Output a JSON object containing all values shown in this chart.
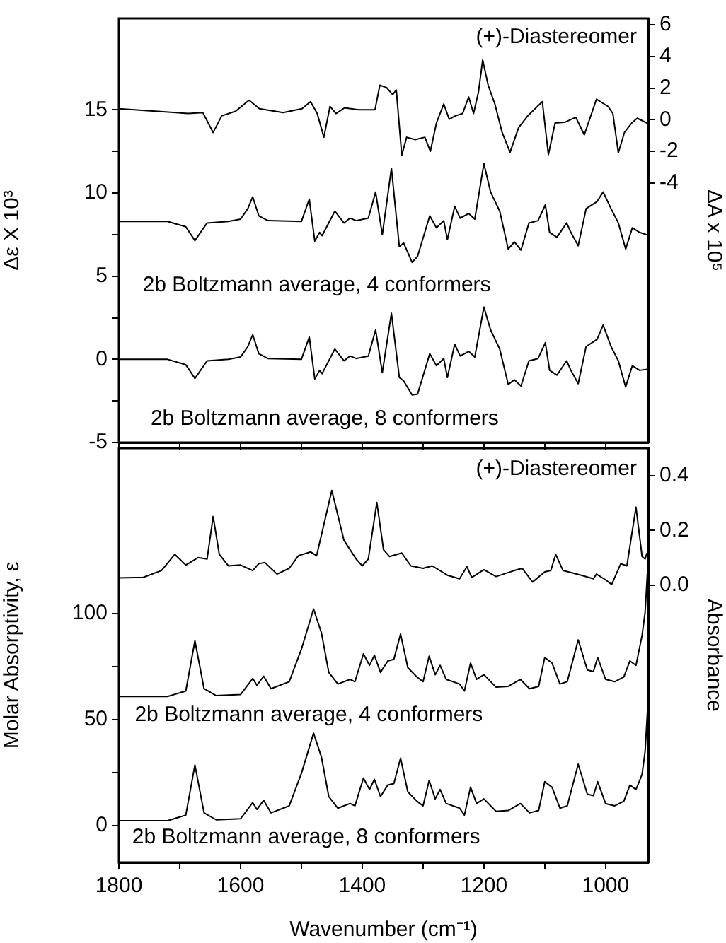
{
  "chart_data": [
    {
      "type": "line",
      "ylabel": "Δε X 10³",
      "y2label": "ΔA x 10⁵",
      "xlim": [
        1800,
        930
      ],
      "xticks": [
        {
          "value": 1800,
          "label": null
        },
        {
          "value": 1700,
          "label": null
        },
        {
          "value": 1600,
          "label": null
        },
        {
          "value": 1500,
          "label": null
        },
        {
          "value": 1400,
          "label": null
        },
        {
          "value": 1300,
          "label": null
        },
        {
          "value": 1200,
          "label": null
        },
        {
          "value": 1100,
          "label": null
        },
        {
          "value": 1000,
          "label": null
        }
      ],
      "ylim": [
        -5,
        20.5
      ],
      "yticks": [
        -5,
        {
          "value": -2.5,
          "label": null
        },
        0,
        {
          "value": 2.5,
          "label": null
        },
        5,
        {
          "value": 7.5,
          "label": null
        },
        10,
        {
          "value": 12.5,
          "label": null
        },
        15
      ],
      "y2lim": [
        -20.4,
        6.4
      ],
      "y2ticks": [
        -4,
        -2,
        0,
        2,
        4,
        6
      ],
      "tick_labels": "y",
      "annotations": [
        "(+)-Diastereomer",
        "2b Boltzmann average, 4 conformers",
        "2b Boltzmann average, 8 conformers"
      ],
      "series": [
        {
          "color": "#000000",
          "axis": "y2",
          "x": [
            1800,
            1686,
            1662,
            1645,
            1631,
            1608,
            1586,
            1569,
            1530,
            1499,
            1485,
            1474,
            1463,
            1453,
            1443,
            1429,
            1406,
            1379,
            1371,
            1360,
            1350,
            1344,
            1335,
            1327,
            1313,
            1297,
            1288,
            1278,
            1266,
            1257,
            1247,
            1235,
            1225,
            1217,
            1209,
            1202,
            1193,
            1182,
            1170,
            1157,
            1143,
            1128,
            1104,
            1094,
            1083,
            1066,
            1049,
            1035,
            1015,
            996,
            988,
            979,
            969,
            957,
            948,
            932
          ],
          "values": [
            0.69,
            0.39,
            0.45,
            -0.81,
            0.24,
            0.54,
            1.23,
            0.69,
            0.45,
            0.69,
            1.14,
            0.39,
            -1.11,
            0.84,
            0.39,
            0.75,
            0.63,
            0.63,
            2.18,
            2.03,
            1.58,
            1.88,
            -2.24,
            -1.11,
            -1.26,
            -1.11,
            -2.0,
            -0.21,
            0.99,
            0.03,
            0.24,
            0.39,
            1.43,
            0.39,
            1.73,
            3.77,
            2.18,
            0.99,
            -0.81,
            -2.06,
            -0.51,
            0.24,
            1.14,
            -2.21,
            -0.21,
            -0.15,
            0.15,
            -0.96,
            1.29,
            0.84,
            0.39,
            -2.09,
            -0.81,
            -0.21,
            0.09,
            -0.21
          ]
        },
        {
          "color": "#000000",
          "x": [
            1800,
            1720,
            1690,
            1675,
            1655,
            1620,
            1600,
            1588,
            1580,
            1570,
            1555,
            1500,
            1487,
            1478,
            1470,
            1466,
            1445,
            1430,
            1420,
            1410,
            1390,
            1378,
            1367,
            1352,
            1339,
            1332,
            1318,
            1309,
            1289,
            1278,
            1266,
            1260,
            1248,
            1239,
            1225,
            1215,
            1200,
            1189,
            1174,
            1160,
            1150,
            1139,
            1126,
            1111,
            1099,
            1092,
            1080,
            1064,
            1057,
            1045,
            1032,
            1014,
            1004,
            991,
            979,
            967,
            956,
            944,
            932
          ],
          "values": [
            8.29,
            8.29,
            7.97,
            7.14,
            8.2,
            8.29,
            8.43,
            9.06,
            9.77,
            8.63,
            8.34,
            8.29,
            9.63,
            7.11,
            7.63,
            7.43,
            8.91,
            8.2,
            8.49,
            8.34,
            8.49,
            10.06,
            7.49,
            11.49,
            6.77,
            7.0,
            5.83,
            6.2,
            8.63,
            7.91,
            8.34,
            7.2,
            9.2,
            8.49,
            8.77,
            8.43,
            11.77,
            10.06,
            8.91,
            6.63,
            7.06,
            6.57,
            8.2,
            8.34,
            9.29,
            7.63,
            7.34,
            8.2,
            7.63,
            6.83,
            9.06,
            9.49,
            10.06,
            9.06,
            8.2,
            6.63,
            7.91,
            7.63,
            7.49
          ]
        },
        {
          "color": "#000000",
          "x": [
            1800,
            1720,
            1690,
            1675,
            1655,
            1620,
            1600,
            1588,
            1580,
            1570,
            1555,
            1500,
            1487,
            1478,
            1470,
            1466,
            1445,
            1430,
            1420,
            1410,
            1390,
            1378,
            1367,
            1352,
            1339,
            1332,
            1318,
            1309,
            1289,
            1278,
            1266,
            1260,
            1248,
            1239,
            1225,
            1215,
            1200,
            1189,
            1174,
            1160,
            1150,
            1139,
            1126,
            1111,
            1099,
            1092,
            1080,
            1064,
            1057,
            1045,
            1032,
            1014,
            1004,
            991,
            979,
            967,
            956,
            944,
            932
          ],
          "values": [
            0,
            0,
            -0.32,
            -1.15,
            -0.09,
            0,
            0.14,
            0.77,
            1.48,
            0.34,
            0.05,
            0,
            1.34,
            -1.18,
            -0.66,
            -0.86,
            0.62,
            -0.09,
            0.2,
            0.05,
            0.2,
            1.77,
            -0.8,
            2.77,
            -1.09,
            -1.29,
            -2.14,
            -2.09,
            0.34,
            -0.38,
            0.05,
            -1.09,
            0.91,
            0.2,
            0.48,
            0.14,
            3.14,
            1.77,
            0.62,
            -1.51,
            -1.23,
            -1.6,
            -0.09,
            0.05,
            1.0,
            -0.66,
            -0.95,
            -0.09,
            -0.66,
            -1.46,
            0.77,
            1.2,
            2.06,
            0.77,
            -0.09,
            -1.66,
            -0.38,
            -0.66,
            -0.6
          ]
        }
      ]
    },
    {
      "type": "line",
      "xlabel": "Wavenumber (cm⁻¹)",
      "ylabel": "Molar Absorptivity, ε",
      "y2label": "Absorbance",
      "xlim": [
        1800,
        930
      ],
      "xticks": [
        1800,
        {
          "value": 1700,
          "label": null
        },
        1600,
        {
          "value": 1500,
          "label": null
        },
        1400,
        {
          "value": 1300,
          "label": null
        },
        1200,
        {
          "value": 1100,
          "label": null
        },
        1000
      ],
      "ylim": [
        -17.5,
        178
      ],
      "yticks": [
        0,
        {
          "value": 25,
          "label": null
        },
        50,
        {
          "value": 75,
          "label": null
        },
        100
      ],
      "y2lim": [
        -1.01,
        0.5
      ],
      "y2ticks": [
        {
          "value": 0,
          "label": "0.0"
        },
        0.2,
        0.4
      ],
      "annotations": [
        "(+)-Diastereomer",
        "2b Boltzmann average, 4 conformers",
        "2b Boltzmann average, 8 conformers"
      ],
      "series": [
        {
          "color": "#000000",
          "axis": "y2",
          "x": [
            1800,
            1760,
            1730,
            1708,
            1690,
            1670,
            1655,
            1645,
            1635,
            1620,
            1600,
            1580,
            1570,
            1560,
            1540,
            1520,
            1505,
            1485,
            1475,
            1450,
            1430,
            1410,
            1400,
            1390,
            1376,
            1365,
            1355,
            1335,
            1320,
            1300,
            1285,
            1260,
            1240,
            1228,
            1220,
            1200,
            1180,
            1150,
            1137,
            1120,
            1100,
            1090,
            1082,
            1070,
            1040,
            1020,
            1015,
            1000,
            990,
            975,
            965,
            950,
            940,
            935,
            932
          ],
          "values": [
            0.027,
            0.029,
            0.054,
            0.113,
            0.074,
            0.101,
            0.096,
            0.251,
            0.113,
            0.071,
            0.074,
            0.054,
            0.079,
            0.083,
            0.041,
            0.062,
            0.108,
            0.122,
            0.108,
            0.346,
            0.164,
            0.096,
            0.071,
            0.096,
            0.302,
            0.13,
            0.105,
            0.118,
            0.071,
            0.062,
            0.071,
            0.037,
            0.024,
            0.068,
            0.029,
            0.057,
            0.032,
            0.054,
            0.062,
            0.012,
            0.049,
            0.054,
            0.113,
            0.054,
            0.037,
            0.024,
            0.041,
            0.02,
            0.003,
            0.079,
            0.071,
            0.285,
            0.105,
            0.096,
            0.118
          ]
        },
        {
          "color": "#000000",
          "x": [
            1800,
            1720,
            1690,
            1675,
            1660,
            1640,
            1600,
            1580,
            1573,
            1562,
            1550,
            1520,
            1500,
            1480,
            1467,
            1455,
            1440,
            1420,
            1412,
            1398,
            1388,
            1380,
            1370,
            1358,
            1348,
            1337,
            1325,
            1310,
            1300,
            1290,
            1280,
            1272,
            1262,
            1240,
            1232,
            1222,
            1212,
            1200,
            1180,
            1160,
            1140,
            1125,
            1110,
            1100,
            1088,
            1075,
            1063,
            1045,
            1030,
            1020,
            1013,
            1000,
            985,
            970,
            960,
            950,
            940,
            935,
            931
          ],
          "values": [
            60.8,
            60.8,
            63.4,
            87.1,
            64.5,
            61.2,
            61.7,
            69.3,
            66.1,
            70.4,
            64.5,
            67.8,
            83.1,
            102.1,
            90.8,
            72.2,
            66.7,
            68.9,
            67.8,
            80.9,
            75.5,
            80.3,
            72.2,
            77.6,
            78.3,
            90.3,
            74.4,
            70.0,
            67.8,
            79.8,
            71.1,
            75.5,
            68.9,
            66.7,
            63.4,
            76.6,
            68.9,
            71.1,
            65.2,
            65.6,
            68.9,
            64.5,
            65.6,
            79.2,
            76.6,
            66.7,
            67.8,
            87.5,
            73.3,
            72.6,
            79.2,
            68.9,
            67.8,
            70.0,
            77.6,
            75.5,
            89.7,
            100.6,
            120.3
          ]
        },
        {
          "color": "#000000",
          "x": [
            1800,
            1720,
            1690,
            1675,
            1660,
            1640,
            1600,
            1580,
            1573,
            1562,
            1550,
            1520,
            1500,
            1480,
            1467,
            1455,
            1440,
            1420,
            1412,
            1398,
            1388,
            1380,
            1370,
            1358,
            1348,
            1337,
            1325,
            1310,
            1300,
            1290,
            1280,
            1272,
            1262,
            1240,
            1232,
            1222,
            1212,
            1200,
            1180,
            1160,
            1140,
            1125,
            1110,
            1100,
            1088,
            1075,
            1063,
            1045,
            1030,
            1020,
            1013,
            1000,
            985,
            970,
            960,
            950,
            940,
            935,
            931
          ],
          "values": [
            2.2,
            2.2,
            4.8,
            28.5,
            5.9,
            2.6,
            3.1,
            10.7,
            7.5,
            11.8,
            5.9,
            9.2,
            24.5,
            43.5,
            32.2,
            13.6,
            8.1,
            10.3,
            9.2,
            22.3,
            16.9,
            21.7,
            13.6,
            19.0,
            19.7,
            31.7,
            15.8,
            11.4,
            9.2,
            21.2,
            12.5,
            16.9,
            10.3,
            8.1,
            4.8,
            18.0,
            10.3,
            12.5,
            6.6,
            7.0,
            10.3,
            5.9,
            7.0,
            20.6,
            18.0,
            8.1,
            9.2,
            28.9,
            14.7,
            14.0,
            20.6,
            10.3,
            9.2,
            11.4,
            19.0,
            16.9,
            24.1,
            35.0,
            54.7
          ]
        }
      ]
    }
  ]
}
